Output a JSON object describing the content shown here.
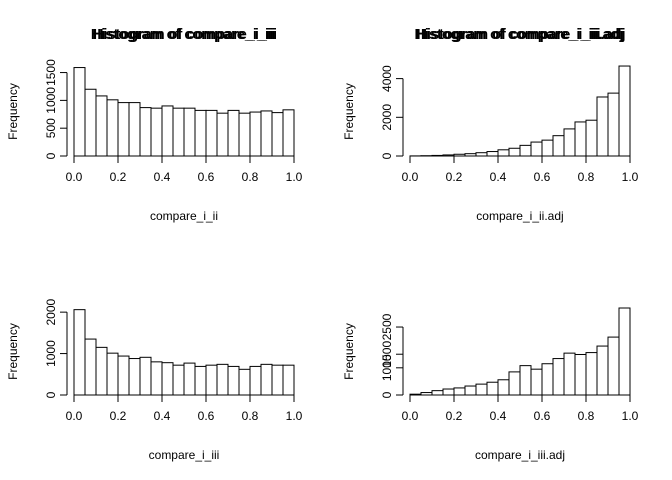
{
  "colors": {
    "bar_fill": "#ffffff",
    "bar_stroke": "#000000",
    "background": "#ffffff"
  },
  "chart_data": [
    {
      "type": "bar",
      "title": "Histogram of compare_i_ii",
      "xlabel": "compare_i_ii",
      "ylabel": "Frequency",
      "xlim": [
        0,
        1
      ],
      "ylim": [
        0,
        1600
      ],
      "xticks": [
        0.0,
        0.2,
        0.4,
        0.6,
        0.8,
        1.0
      ],
      "xtick_labels": [
        "0.0",
        "0.2",
        "0.4",
        "0.6",
        "0.8",
        "1.0"
      ],
      "yticks": [
        0,
        500,
        1000,
        1500
      ],
      "ytick_labels": [
        "0",
        "500",
        "1000",
        "1500"
      ],
      "bin_edges": [
        0,
        0.05,
        0.1,
        0.15,
        0.2,
        0.25,
        0.3,
        0.35,
        0.4,
        0.45,
        0.5,
        0.55,
        0.6,
        0.65,
        0.7,
        0.75,
        0.8,
        0.85,
        0.9,
        0.95,
        1.0
      ],
      "values": [
        1590,
        1200,
        1080,
        1010,
        960,
        960,
        870,
        860,
        900,
        860,
        860,
        820,
        820,
        770,
        820,
        770,
        790,
        810,
        780,
        830
      ],
      "grid": false
    },
    {
      "type": "bar",
      "title": "Histogram of compare_i_ii.adj",
      "xlabel": "compare_i_ii.adj",
      "ylabel": "Frequency",
      "xlim": [
        0,
        1
      ],
      "ylim": [
        0,
        4600
      ],
      "xticks": [
        0.0,
        0.2,
        0.4,
        0.6,
        0.8,
        1.0
      ],
      "xtick_labels": [
        "0.0",
        "0.2",
        "0.4",
        "0.6",
        "0.8",
        "1.0"
      ],
      "yticks": [
        0,
        2000,
        4000
      ],
      "ytick_labels": [
        "0",
        "2000",
        "4000"
      ],
      "bin_edges": [
        0,
        0.05,
        0.1,
        0.15,
        0.2,
        0.25,
        0.3,
        0.35,
        0.4,
        0.45,
        0.5,
        0.55,
        0.6,
        0.65,
        0.7,
        0.75,
        0.8,
        0.85,
        0.9,
        0.95,
        1.0
      ],
      "values": [
        5,
        15,
        30,
        55,
        90,
        120,
        170,
        230,
        320,
        400,
        550,
        720,
        820,
        1050,
        1400,
        1760,
        1850,
        3050,
        3250,
        4650
      ],
      "grid": false
    },
    {
      "type": "bar",
      "title": "Histogram of compare_i_iii",
      "xlabel": "compare_i_iii",
      "ylabel": "Frequency",
      "xlim": [
        0,
        1
      ],
      "ylim": [
        0,
        2100
      ],
      "xticks": [
        0.0,
        0.2,
        0.4,
        0.6,
        0.8,
        1.0
      ],
      "xtick_labels": [
        "0.0",
        "0.2",
        "0.4",
        "0.6",
        "0.8",
        "1.0"
      ],
      "yticks": [
        0,
        1000,
        2000
      ],
      "ytick_labels": [
        "0",
        "1000",
        "2000"
      ],
      "bin_edges": [
        0,
        0.05,
        0.1,
        0.15,
        0.2,
        0.25,
        0.3,
        0.35,
        0.4,
        0.45,
        0.5,
        0.55,
        0.6,
        0.65,
        0.7,
        0.75,
        0.8,
        0.85,
        0.9,
        0.95,
        1.0
      ],
      "values": [
        2060,
        1350,
        1150,
        1010,
        940,
        880,
        910,
        800,
        780,
        720,
        770,
        690,
        720,
        740,
        690,
        620,
        690,
        740,
        720,
        720
      ],
      "grid": false
    },
    {
      "type": "bar",
      "title": "Histogram of compare_i_iii.adj",
      "xlabel": "compare_i_iii.adj",
      "ylabel": "Frequency",
      "xlim": [
        0,
        1
      ],
      "ylim": [
        0,
        3200
      ],
      "xticks": [
        0.0,
        0.2,
        0.4,
        0.6,
        0.8,
        1.0
      ],
      "xtick_labels": [
        "0.0",
        "0.2",
        "0.4",
        "0.6",
        "0.8",
        "1.0"
      ],
      "yticks": [
        0,
        1000,
        1500,
        2500
      ],
      "ytick_labels": [
        "0",
        "1000",
        "1500",
        "2500"
      ],
      "bin_edges": [
        0,
        0.05,
        0.1,
        0.15,
        0.2,
        0.25,
        0.3,
        0.35,
        0.4,
        0.45,
        0.5,
        0.55,
        0.6,
        0.65,
        0.7,
        0.75,
        0.8,
        0.85,
        0.9,
        0.95,
        1.0
      ],
      "values": [
        30,
        90,
        160,
        220,
        260,
        330,
        400,
        470,
        560,
        850,
        1080,
        950,
        1150,
        1340,
        1540,
        1490,
        1560,
        1800,
        2130,
        3200
      ],
      "grid": false
    }
  ]
}
